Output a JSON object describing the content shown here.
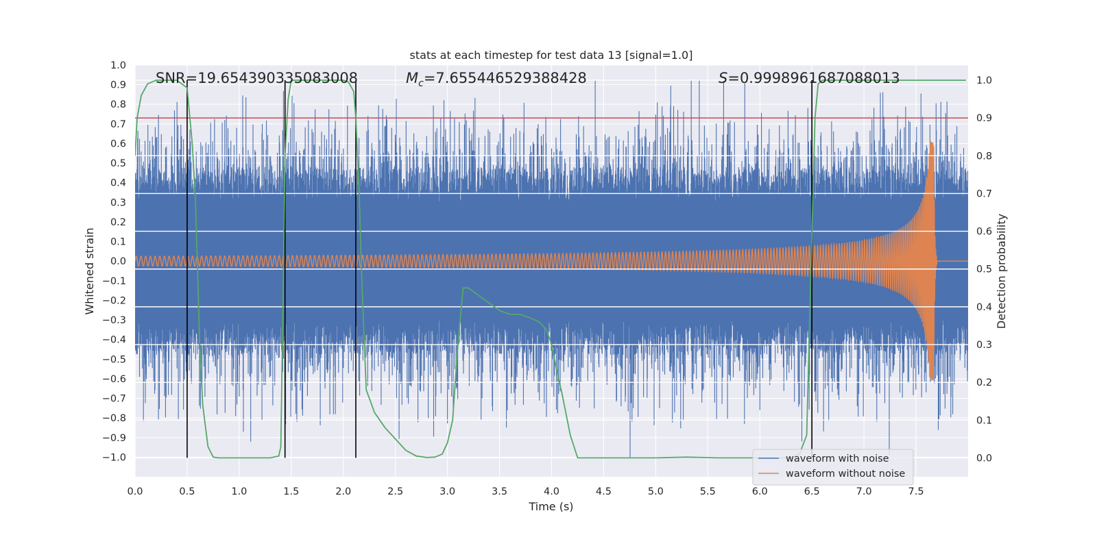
{
  "chart_data": {
    "type": "line",
    "title": "stats at each timestep for test data 13 [signal=1.0]",
    "xlabel": "Time (s)",
    "ylabel": "Whitened strain",
    "ylabel_right": "Detection probability",
    "xlim": [
      0.0,
      8.0
    ],
    "ylim": [
      -1.1,
      1.0
    ],
    "ylim_right": [
      -0.05,
      1.04
    ],
    "x_ticks": [
      0.0,
      0.5,
      1.0,
      1.5,
      2.0,
      2.5,
      3.0,
      3.5,
      4.0,
      4.5,
      5.0,
      5.5,
      6.0,
      6.5,
      7.0,
      7.5
    ],
    "x_tick_labels": [
      "0.0",
      "0.5",
      "1.0",
      "1.5",
      "2.0",
      "2.5",
      "3.0",
      "3.5",
      "4.0",
      "4.5",
      "5.0",
      "5.5",
      "6.0",
      "6.5",
      "7.0",
      "7.5"
    ],
    "y_ticks": [
      -1.0,
      -0.9,
      -0.8,
      -0.7,
      -0.6,
      -0.5,
      -0.4,
      -0.3,
      -0.2,
      -0.1,
      0.0,
      0.1,
      0.2,
      0.3,
      0.4,
      0.5,
      0.6,
      0.7,
      0.8,
      0.9,
      1.0
    ],
    "y_tick_labels": [
      "−1.0",
      "−0.9",
      "−0.8",
      "−0.7",
      "−0.6",
      "−0.5",
      "−0.4",
      "−0.3",
      "−0.2",
      "−0.1",
      "0.0",
      "0.1",
      "0.2",
      "0.3",
      "0.4",
      "0.5",
      "0.6",
      "0.7",
      "0.8",
      "0.9",
      "1.0"
    ],
    "y_right_ticks": [
      0.0,
      0.1,
      0.2,
      0.3,
      0.4,
      0.5,
      0.6,
      0.7,
      0.8,
      0.9,
      1.0
    ],
    "y_right_tick_labels": [
      "0.0",
      "0.1",
      "0.2",
      "0.3",
      "0.4",
      "0.5",
      "0.6",
      "0.7",
      "0.8",
      "0.9",
      "1.0"
    ],
    "annotations": {
      "snr": "SNR=19.654390335083008",
      "mc": "M_c=7.655446529388428",
      "mc_symbol": "M",
      "mc_subscript": "c",
      "mc_value": "=7.655446529388428",
      "s_symbol": "S",
      "s_value": "=0.9998961687088013"
    },
    "threshold": {
      "value": 0.9,
      "axis": "right",
      "color": "#c44e52"
    },
    "vertical_markers_x": [
      0.5,
      1.44,
      2.12,
      6.5
    ],
    "series": [
      {
        "name": "waveform with noise",
        "color": "#4c72b0",
        "axis": "left",
        "kind": "noise",
        "approx_envelope": {
          "x_range": [
            0.0,
            8.0
          ],
          "core_amplitude": 0.4,
          "peak_amplitude": 0.92
        }
      },
      {
        "name": "waveform without noise",
        "color": "#dd8452",
        "axis": "left",
        "kind": "chirp",
        "chirp": {
          "start_amplitude": 0.025,
          "peak_amplitude": 0.61,
          "merger_time": 7.67,
          "ringdown_end": 7.7,
          "start_freq": 22,
          "end_freq": 150
        }
      },
      {
        "name": "detection probability",
        "color": "#55a868",
        "axis": "right",
        "kind": "line",
        "x": [
          0.0,
          0.02,
          0.06,
          0.12,
          0.2,
          0.3,
          0.4,
          0.45,
          0.5,
          0.55,
          0.58,
          0.6,
          0.62,
          0.65,
          0.7,
          0.75,
          0.8,
          0.9,
          1.0,
          1.1,
          1.2,
          1.3,
          1.38,
          1.4,
          1.42,
          1.44,
          1.47,
          1.5,
          1.6,
          1.8,
          2.0,
          2.05,
          2.1,
          2.12,
          2.15,
          2.18,
          2.22,
          2.3,
          2.4,
          2.5,
          2.6,
          2.7,
          2.8,
          2.88,
          2.95,
          3.0,
          3.05,
          3.1,
          3.15,
          3.2,
          3.3,
          3.4,
          3.5,
          3.6,
          3.7,
          3.8,
          3.88,
          3.95,
          4.0,
          4.05,
          4.1,
          4.18,
          4.25,
          4.4,
          4.6,
          4.8,
          5.0,
          5.3,
          5.6,
          5.9,
          6.1,
          6.3,
          6.38,
          6.45,
          6.5,
          6.53,
          6.56,
          6.6,
          6.8,
          7.0,
          7.5,
          7.98
        ],
        "y": [
          0.8,
          0.9,
          0.96,
          0.99,
          1.0,
          1.0,
          1.0,
          0.99,
          0.98,
          0.83,
          0.68,
          0.5,
          0.3,
          0.14,
          0.03,
          0.002,
          0.0,
          0.0,
          0.0,
          0.0,
          0.0,
          0.0,
          0.005,
          0.03,
          0.4,
          0.8,
          0.95,
          1.0,
          1.0,
          1.0,
          1.0,
          0.995,
          0.97,
          0.9,
          0.72,
          0.45,
          0.18,
          0.12,
          0.08,
          0.05,
          0.02,
          0.005,
          0.001,
          0.002,
          0.01,
          0.04,
          0.1,
          0.3,
          0.45,
          0.45,
          0.43,
          0.41,
          0.39,
          0.38,
          0.38,
          0.37,
          0.36,
          0.34,
          0.3,
          0.23,
          0.17,
          0.06,
          0.0,
          0.0,
          0.0,
          0.0,
          0.0,
          0.002,
          0.0,
          0.0,
          0.0,
          0.0,
          0.01,
          0.06,
          0.6,
          0.9,
          0.99,
          1.0,
          1.0,
          1.0,
          1.0,
          1.0
        ]
      }
    ],
    "legend": {
      "position": "lower-right",
      "entries": [
        "waveform with noise",
        "waveform without noise"
      ]
    }
  }
}
